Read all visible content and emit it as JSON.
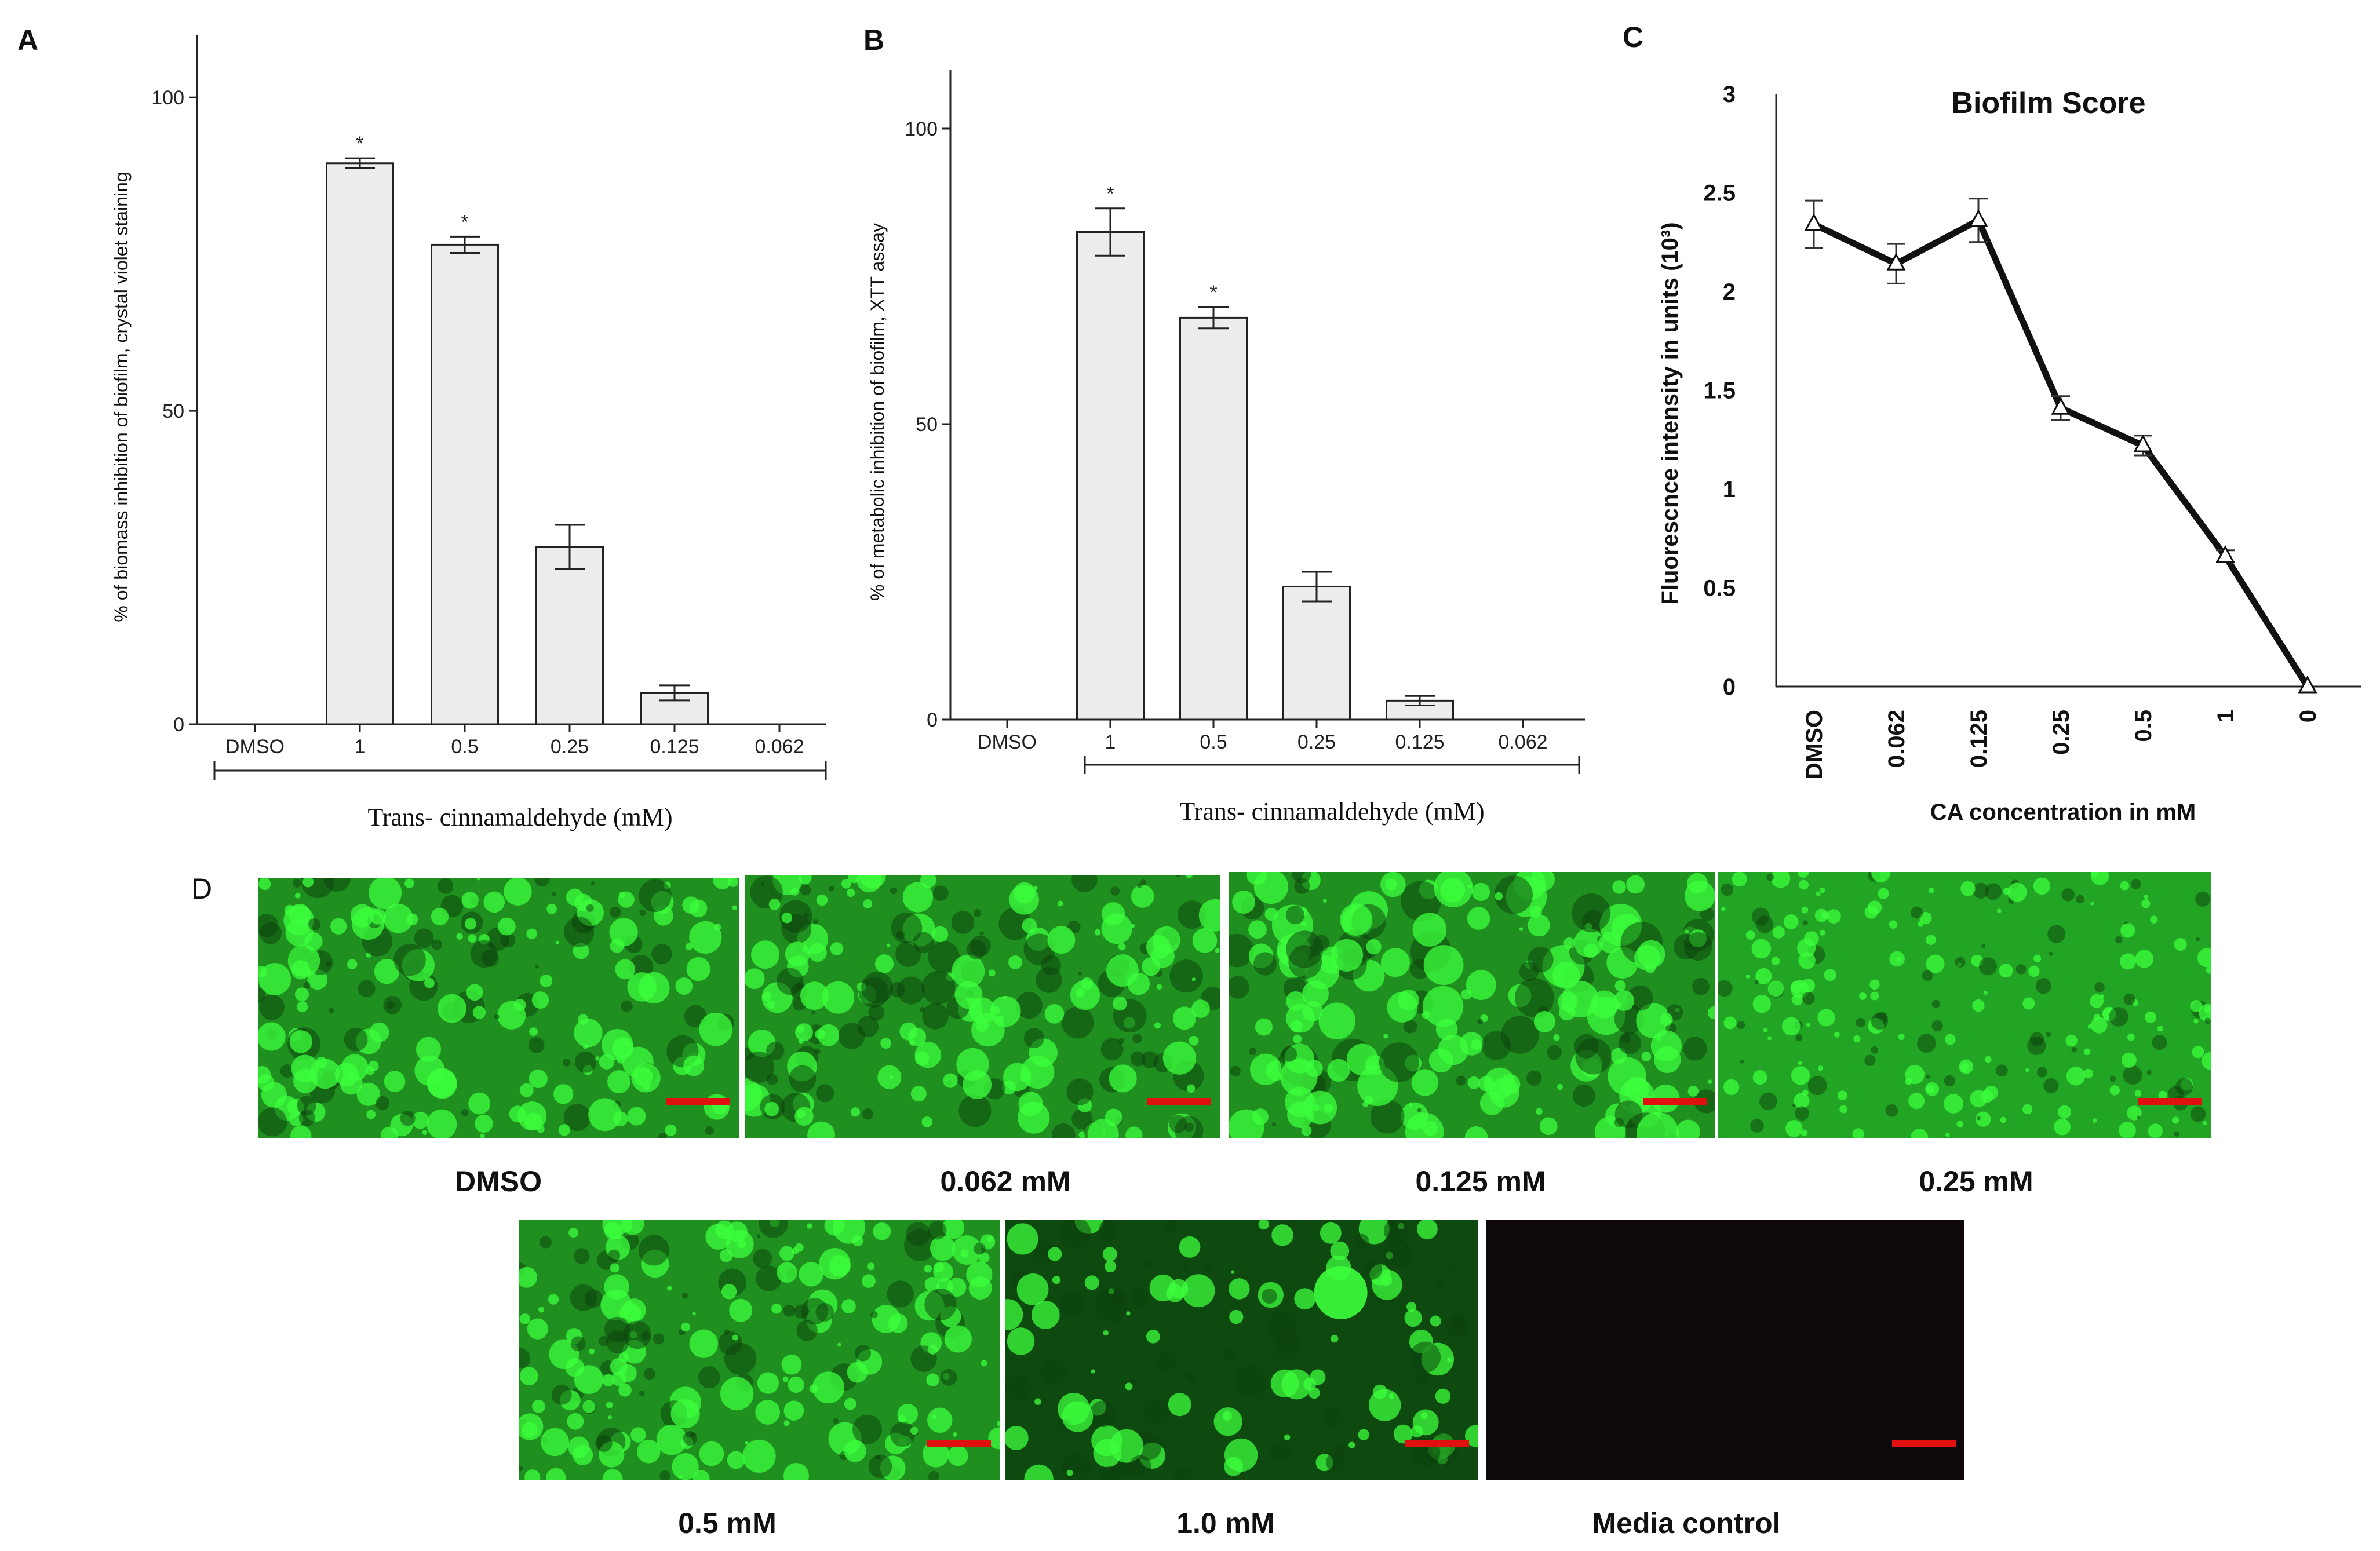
{
  "panels": {
    "a": {
      "letter": "A"
    },
    "b": {
      "letter": "B"
    },
    "c": {
      "letter": "C"
    },
    "d": {
      "letter": "D"
    }
  },
  "chart_data": [
    {
      "panel": "A",
      "type": "bar",
      "title": "",
      "ylabel": "% of biomass inhibition of biofilm, crystal violet staining",
      "xlabel": "Trans- cinnamaldehyde (mM)",
      "categories": [
        "DMSO",
        "1",
        "0.5",
        "0.25",
        "0.125",
        "0.062"
      ],
      "values": [
        0,
        89.5,
        76.5,
        28.3,
        5.0,
        0
      ],
      "errors": [
        0,
        0.8,
        1.3,
        3.5,
        1.2,
        0
      ],
      "significance": [
        "",
        "*",
        "*",
        "",
        "",
        ""
      ],
      "yticks": [
        0,
        50,
        100
      ],
      "ylim": [
        0,
        110
      ],
      "grid": false
    },
    {
      "panel": "B",
      "type": "bar",
      "title": "",
      "ylabel": "% of metabolic inhibition of biofilm, XTT assay",
      "xlabel": "Trans- cinnamaldehyde (mM)",
      "categories": [
        "DMSO",
        "1",
        "0.5",
        "0.25",
        "0.125",
        "0.062"
      ],
      "values": [
        0,
        82.5,
        68.0,
        22.5,
        3.2,
        0
      ],
      "errors": [
        0,
        4.0,
        1.8,
        2.5,
        0.8,
        0
      ],
      "significance": [
        "",
        "*",
        "*",
        "",
        "",
        ""
      ],
      "yticks": [
        0,
        50,
        100
      ],
      "ylim": [
        0,
        110
      ],
      "grid": false
    },
    {
      "panel": "C",
      "type": "line",
      "title": "Biofilm Score",
      "ylabel": "Fluorescnce intensity in units (10³)",
      "xlabel": "CA concentration in mM",
      "categories": [
        "DMSO",
        "0.062",
        "0.125",
        "0.25",
        "0.5",
        "1",
        "0"
      ],
      "values": [
        2.34,
        2.14,
        2.36,
        1.41,
        1.22,
        0.66,
        0.0
      ],
      "errors": [
        0.12,
        0.1,
        0.11,
        0.06,
        0.05,
        0.03,
        0
      ],
      "yticks": [
        "0",
        "0.5",
        "1",
        "1.5",
        "2",
        "2.5",
        "3"
      ],
      "ylim": [
        0,
        3
      ],
      "grid": false
    }
  ],
  "images": {
    "tiles": [
      {
        "caption": "DMSO",
        "kind": "green-dense"
      },
      {
        "caption": "0.062 mM",
        "kind": "green-dense"
      },
      {
        "caption": "0.125 mM",
        "kind": "green-bright"
      },
      {
        "caption": "0.25 mM",
        "kind": "green-fine"
      },
      {
        "caption": "0.5 mM",
        "kind": "green-dense"
      },
      {
        "caption": "1.0 mM",
        "kind": "green-sparse"
      },
      {
        "caption": "Media control",
        "kind": "dark"
      }
    ],
    "scale_bar_color": "#e01010",
    "fluor_color": "#3cff3c"
  }
}
